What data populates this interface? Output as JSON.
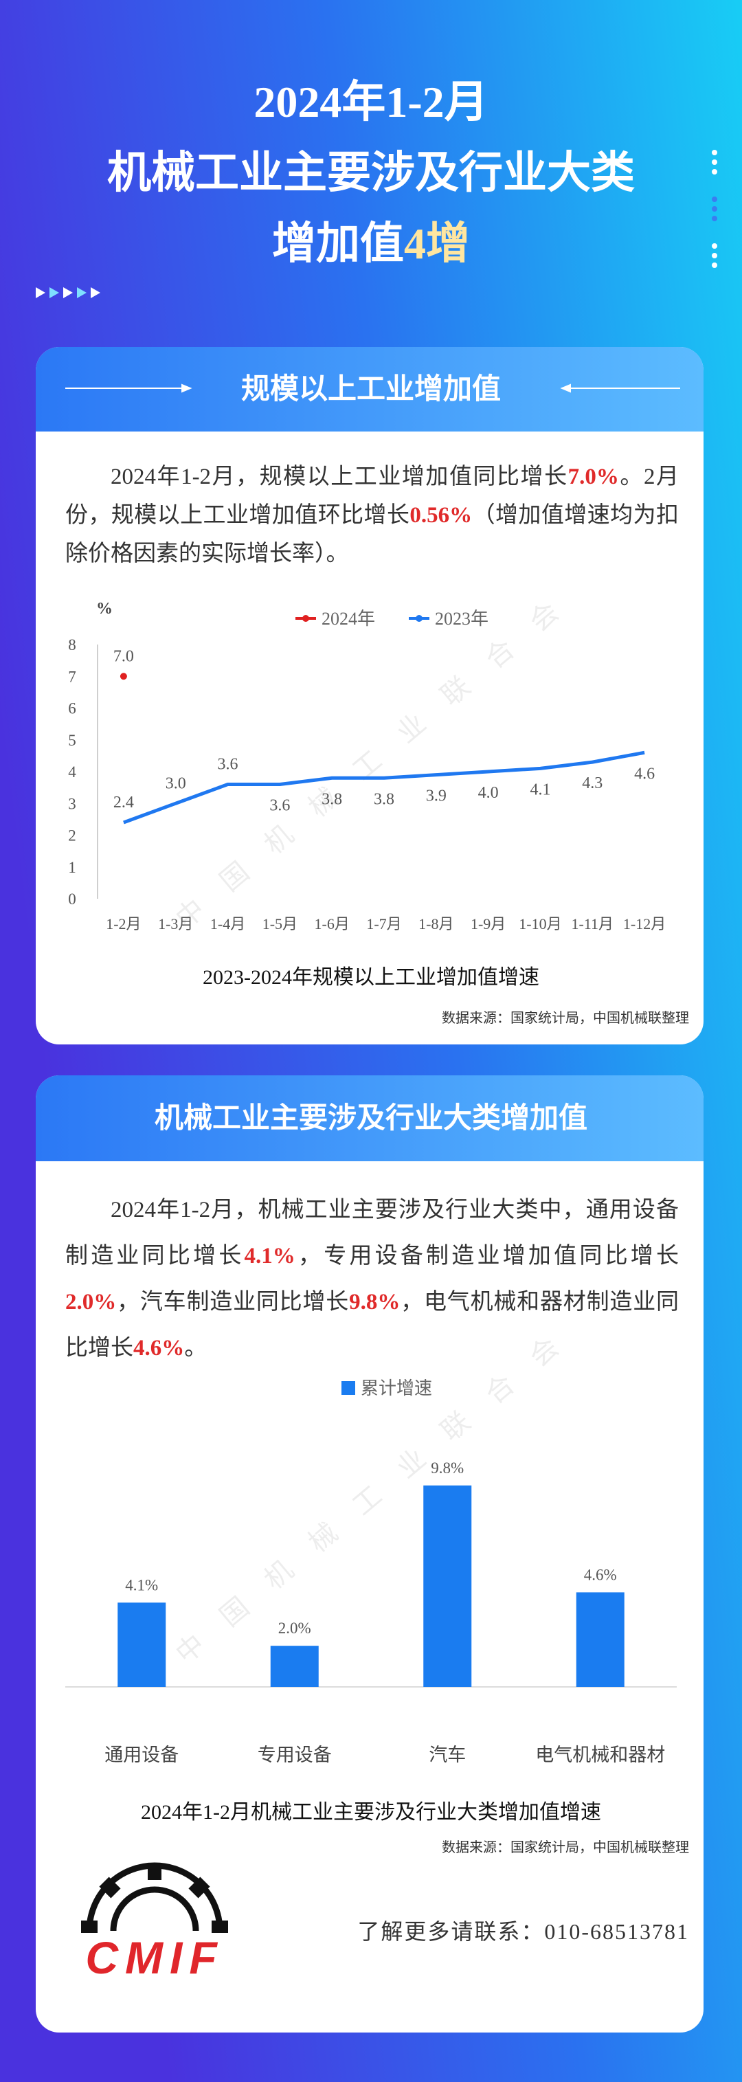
{
  "header": {
    "title": [
      [
        {
          "text": "2024年1-2月"
        }
      ],
      [
        {
          "text": "机械工业主要涉及行业大类"
        }
      ],
      [
        {
          "text": "增加值"
        },
        {
          "text": "4增",
          "highlight": true
        }
      ]
    ]
  },
  "watermark": "中国机械工业联合会",
  "sections": [
    {
      "heading": "规模以上工业增加值",
      "paragraph": [
        {
          "text": "2024年1-2月，规模以上工业增加值同比增长"
        },
        {
          "text": "7.0%",
          "highlight": true
        },
        {
          "text": "。2月份，规模以上工业增加值环比增长"
        },
        {
          "text": "0.56%",
          "highlight": true
        },
        {
          "text": "（增加值增速均为扣除价格因素的实际增长率）。"
        }
      ]
    },
    {
      "heading": "机械工业主要涉及行业大类增加值",
      "paragraph": [
        {
          "text": "2024年1-2月，机械工业主要涉及行业大类中，通用设备制造业同比增长"
        },
        {
          "text": "4.1%",
          "highlight": true
        },
        {
          "text": "，专用设备制造业增加值同比增长"
        },
        {
          "text": "2.0%",
          "highlight": true
        },
        {
          "text": "，汽车制造业同比增长"
        },
        {
          "text": "9.8%",
          "highlight": true
        },
        {
          "text": "，电气机械和器材制造业同比增长"
        },
        {
          "text": "4.6%",
          "highlight": true
        },
        {
          "text": "。"
        }
      ]
    }
  ],
  "chart_data": [
    {
      "type": "line",
      "title": "2023-2024年规模以上工业增加值增速",
      "y_label": "%",
      "source": "数据来源：国家统计局，中国机械联整理",
      "categories": [
        "1-2月",
        "1-3月",
        "1-4月",
        "1-5月",
        "1-6月",
        "1-7月",
        "1-8月",
        "1-9月",
        "1-10月",
        "1-11月",
        "1-12月"
      ],
      "series": [
        {
          "name": "2024年",
          "color": "#e02020",
          "values": [
            7.0,
            null,
            null,
            null,
            null,
            null,
            null,
            null,
            null,
            null,
            null
          ],
          "value_labels": [
            "7.0",
            null,
            null,
            null,
            null,
            null,
            null,
            null,
            null,
            null,
            null
          ]
        },
        {
          "name": "2023年",
          "color": "#1f78f0",
          "values": [
            2.4,
            3.0,
            3.6,
            3.6,
            3.8,
            3.8,
            3.9,
            4.0,
            4.1,
            4.3,
            4.6
          ],
          "value_labels": [
            "2.4",
            "3.0",
            "3.6",
            "3.6",
            "3.8",
            "3.8",
            "3.9",
            "4.0",
            "4.1",
            "4.3",
            "4.6"
          ]
        }
      ],
      "ylim": [
        0,
        8
      ],
      "yticks": [
        0,
        1,
        2,
        3,
        4,
        5,
        6,
        7,
        8
      ],
      "grid": false
    },
    {
      "type": "bar",
      "title": "2024年1-2月机械工业主要涉及行业大类增加值增速",
      "source": "数据来源：国家统计局，中国机械联整理",
      "categories": [
        "通用设备",
        "专用设备",
        "汽车",
        "电气机械和器材"
      ],
      "series": [
        {
          "name": "累计增速",
          "color": "#1a7cf0",
          "values": [
            4.1,
            2.0,
            9.8,
            4.6
          ],
          "value_labels": [
            "4.1%",
            "2.0%",
            "9.8%",
            "4.6%"
          ]
        }
      ],
      "ylim": [
        0,
        12
      ],
      "grid": false
    }
  ],
  "footer": {
    "logo": "CMIF",
    "contact": "了解更多请联系：010-68513781"
  }
}
